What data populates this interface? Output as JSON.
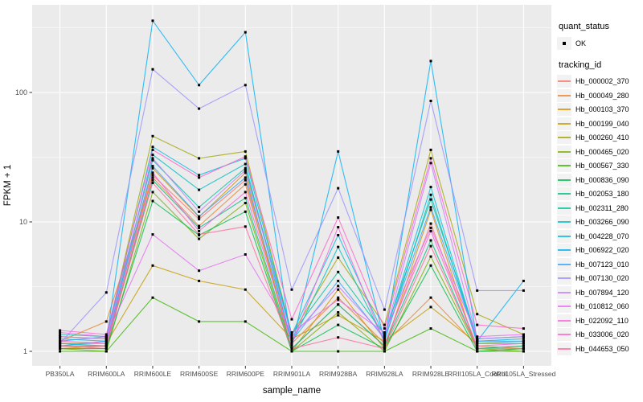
{
  "legend": {
    "quant_status_title": "quant_status",
    "quant_status_items": [
      {
        "label": "OK",
        "symbol": "point"
      }
    ],
    "tracking_title": "tracking_id"
  },
  "colors": {
    "panel_background": "#EBEBEB",
    "gridline": "#FFFFFF",
    "axis_text": "#4D4D4D",
    "axis_title": "#000000",
    "point": "#000000",
    "tick_mark": "#333333",
    "legend_key_fill": "#F2F2F2"
  },
  "chart_data": {
    "type": "line",
    "title": "",
    "xlabel": "sample_name",
    "ylabel": "FPKM + 1",
    "y_scale": "log10",
    "y_ticks": [
      1,
      10,
      100
    ],
    "y_minor_ticks": [
      3.162,
      31.62,
      316.2
    ],
    "ylim": [
      0.77,
      475
    ],
    "grid": true,
    "legend_position": "right",
    "point_shape": "small-black-square",
    "x_categories": [
      "PB350LA",
      "RRIM600LA",
      "RRIM600LE",
      "RRIM600SE",
      "RRIM600PE",
      "RRIM901LA",
      "RRIM928BA",
      "RRIM928LA",
      "RRIM928LE",
      "RRII105LA_Control",
      "RRII105LA_Stressed"
    ],
    "series": [
      {
        "name": "Hb_000002_370",
        "color": "#F8766D",
        "values": [
          1.1,
          1.05,
          23,
          10.5,
          21,
          1.05,
          2.3,
          1.1,
          9.7,
          1.05,
          1.1
        ]
      },
      {
        "name": "Hb_000049_280",
        "color": "#EA8331",
        "values": [
          1.2,
          1.7,
          22,
          9.3,
          19.5,
          1.15,
          2.6,
          1.15,
          2.6,
          1.1,
          1.05
        ]
      },
      {
        "name": "Hb_000103_370",
        "color": "#D89000",
        "values": [
          1.05,
          1.1,
          26,
          10.9,
          24,
          1.0,
          3.0,
          1.05,
          12.4,
          1.0,
          1.05
        ]
      },
      {
        "name": "Hb_000199_040",
        "color": "#C49A00",
        "values": [
          1.15,
          1.15,
          4.6,
          3.5,
          3.0,
          1.25,
          1.9,
          1.2,
          2.2,
          1.15,
          1.2
        ]
      },
      {
        "name": "Hb_000260_410",
        "color": "#A3A500",
        "values": [
          1.3,
          1.25,
          46,
          31,
          35,
          1.35,
          5.3,
          1.6,
          36,
          1.94,
          1.35
        ]
      },
      {
        "name": "Hb_000465_020",
        "color": "#7CAE00",
        "values": [
          1.05,
          1.0,
          17,
          7.4,
          14,
          1.0,
          2.0,
          1.0,
          5.4,
          1.05,
          1.0
        ]
      },
      {
        "name": "Hb_000567_330",
        "color": "#39B600",
        "values": [
          1.0,
          1.0,
          2.6,
          1.7,
          1.7,
          1.0,
          1.0,
          1.0,
          1.5,
          1.0,
          1.0
        ]
      },
      {
        "name": "Hb_000836_090",
        "color": "#00BB4E",
        "values": [
          1.05,
          1.05,
          14.5,
          7.9,
          12,
          1.0,
          1.6,
          1.05,
          4.6,
          1.0,
          1.05
        ]
      },
      {
        "name": "Hb_002053_180",
        "color": "#00BF7D",
        "values": [
          1.1,
          1.1,
          21,
          9.0,
          15.3,
          1.05,
          2.3,
          1.1,
          7.2,
          1.05,
          1.1
        ]
      },
      {
        "name": "Hb_002311_280",
        "color": "#00C1A3",
        "values": [
          1.35,
          1.3,
          30,
          13,
          26,
          1.35,
          4.1,
          1.35,
          14.9,
          1.25,
          1.3
        ]
      },
      {
        "name": "Hb_003266_090",
        "color": "#00BFC4",
        "values": [
          1.15,
          1.1,
          33,
          17.7,
          28,
          1.15,
          6.4,
          1.2,
          16.2,
          1.15,
          1.15
        ]
      },
      {
        "name": "Hb_004228_070",
        "color": "#00BAE0",
        "values": [
          1.2,
          1.3,
          38,
          23,
          31,
          1.35,
          7.9,
          1.3,
          18.6,
          1.2,
          1.25
        ]
      },
      {
        "name": "Hb_006922_020",
        "color": "#00B0F6",
        "values": [
          1.1,
          1.2,
          358,
          114,
          292,
          1.1,
          35,
          1.2,
          175,
          1.2,
          3.5
        ]
      },
      {
        "name": "Hb_007123_010",
        "color": "#35A2FF",
        "values": [
          1.25,
          1.2,
          27,
          11,
          22,
          1.2,
          3.5,
          1.25,
          13,
          1.2,
          1.2
        ]
      },
      {
        "name": "Hb_007130_020",
        "color": "#9590FF",
        "values": [
          1.15,
          2.85,
          151,
          75,
          114,
          3.0,
          18.2,
          2.1,
          86,
          2.95,
          2.95
        ]
      },
      {
        "name": "Hb_007894_120",
        "color": "#C77CFF",
        "values": [
          1.3,
          1.25,
          31,
          12,
          25,
          1.3,
          3.2,
          1.3,
          28.5,
          1.25,
          1.3
        ]
      },
      {
        "name": "Hb_010812_060",
        "color": "#E76BF3",
        "values": [
          1.4,
          1.3,
          8.0,
          4.2,
          5.6,
          1.4,
          2.5,
          1.4,
          9.0,
          1.3,
          1.35
        ]
      },
      {
        "name": "Hb_022092_110",
        "color": "#FA62DB",
        "values": [
          1.2,
          1.15,
          24,
          8.5,
          17,
          1.15,
          9.1,
          1.15,
          8.5,
          1.1,
          1.15
        ]
      },
      {
        "name": "Hb_033006_020",
        "color": "#FF61CC",
        "values": [
          1.45,
          1.35,
          36,
          22,
          32,
          1.77,
          10.8,
          1.5,
          31,
          1.6,
          1.5
        ]
      },
      {
        "name": "Hb_044653_050",
        "color": "#FF6A98",
        "values": [
          1.1,
          1.1,
          20,
          8.0,
          9.2,
          1.05,
          1.28,
          1.05,
          6.5,
          1.05,
          1.05
        ]
      }
    ]
  }
}
